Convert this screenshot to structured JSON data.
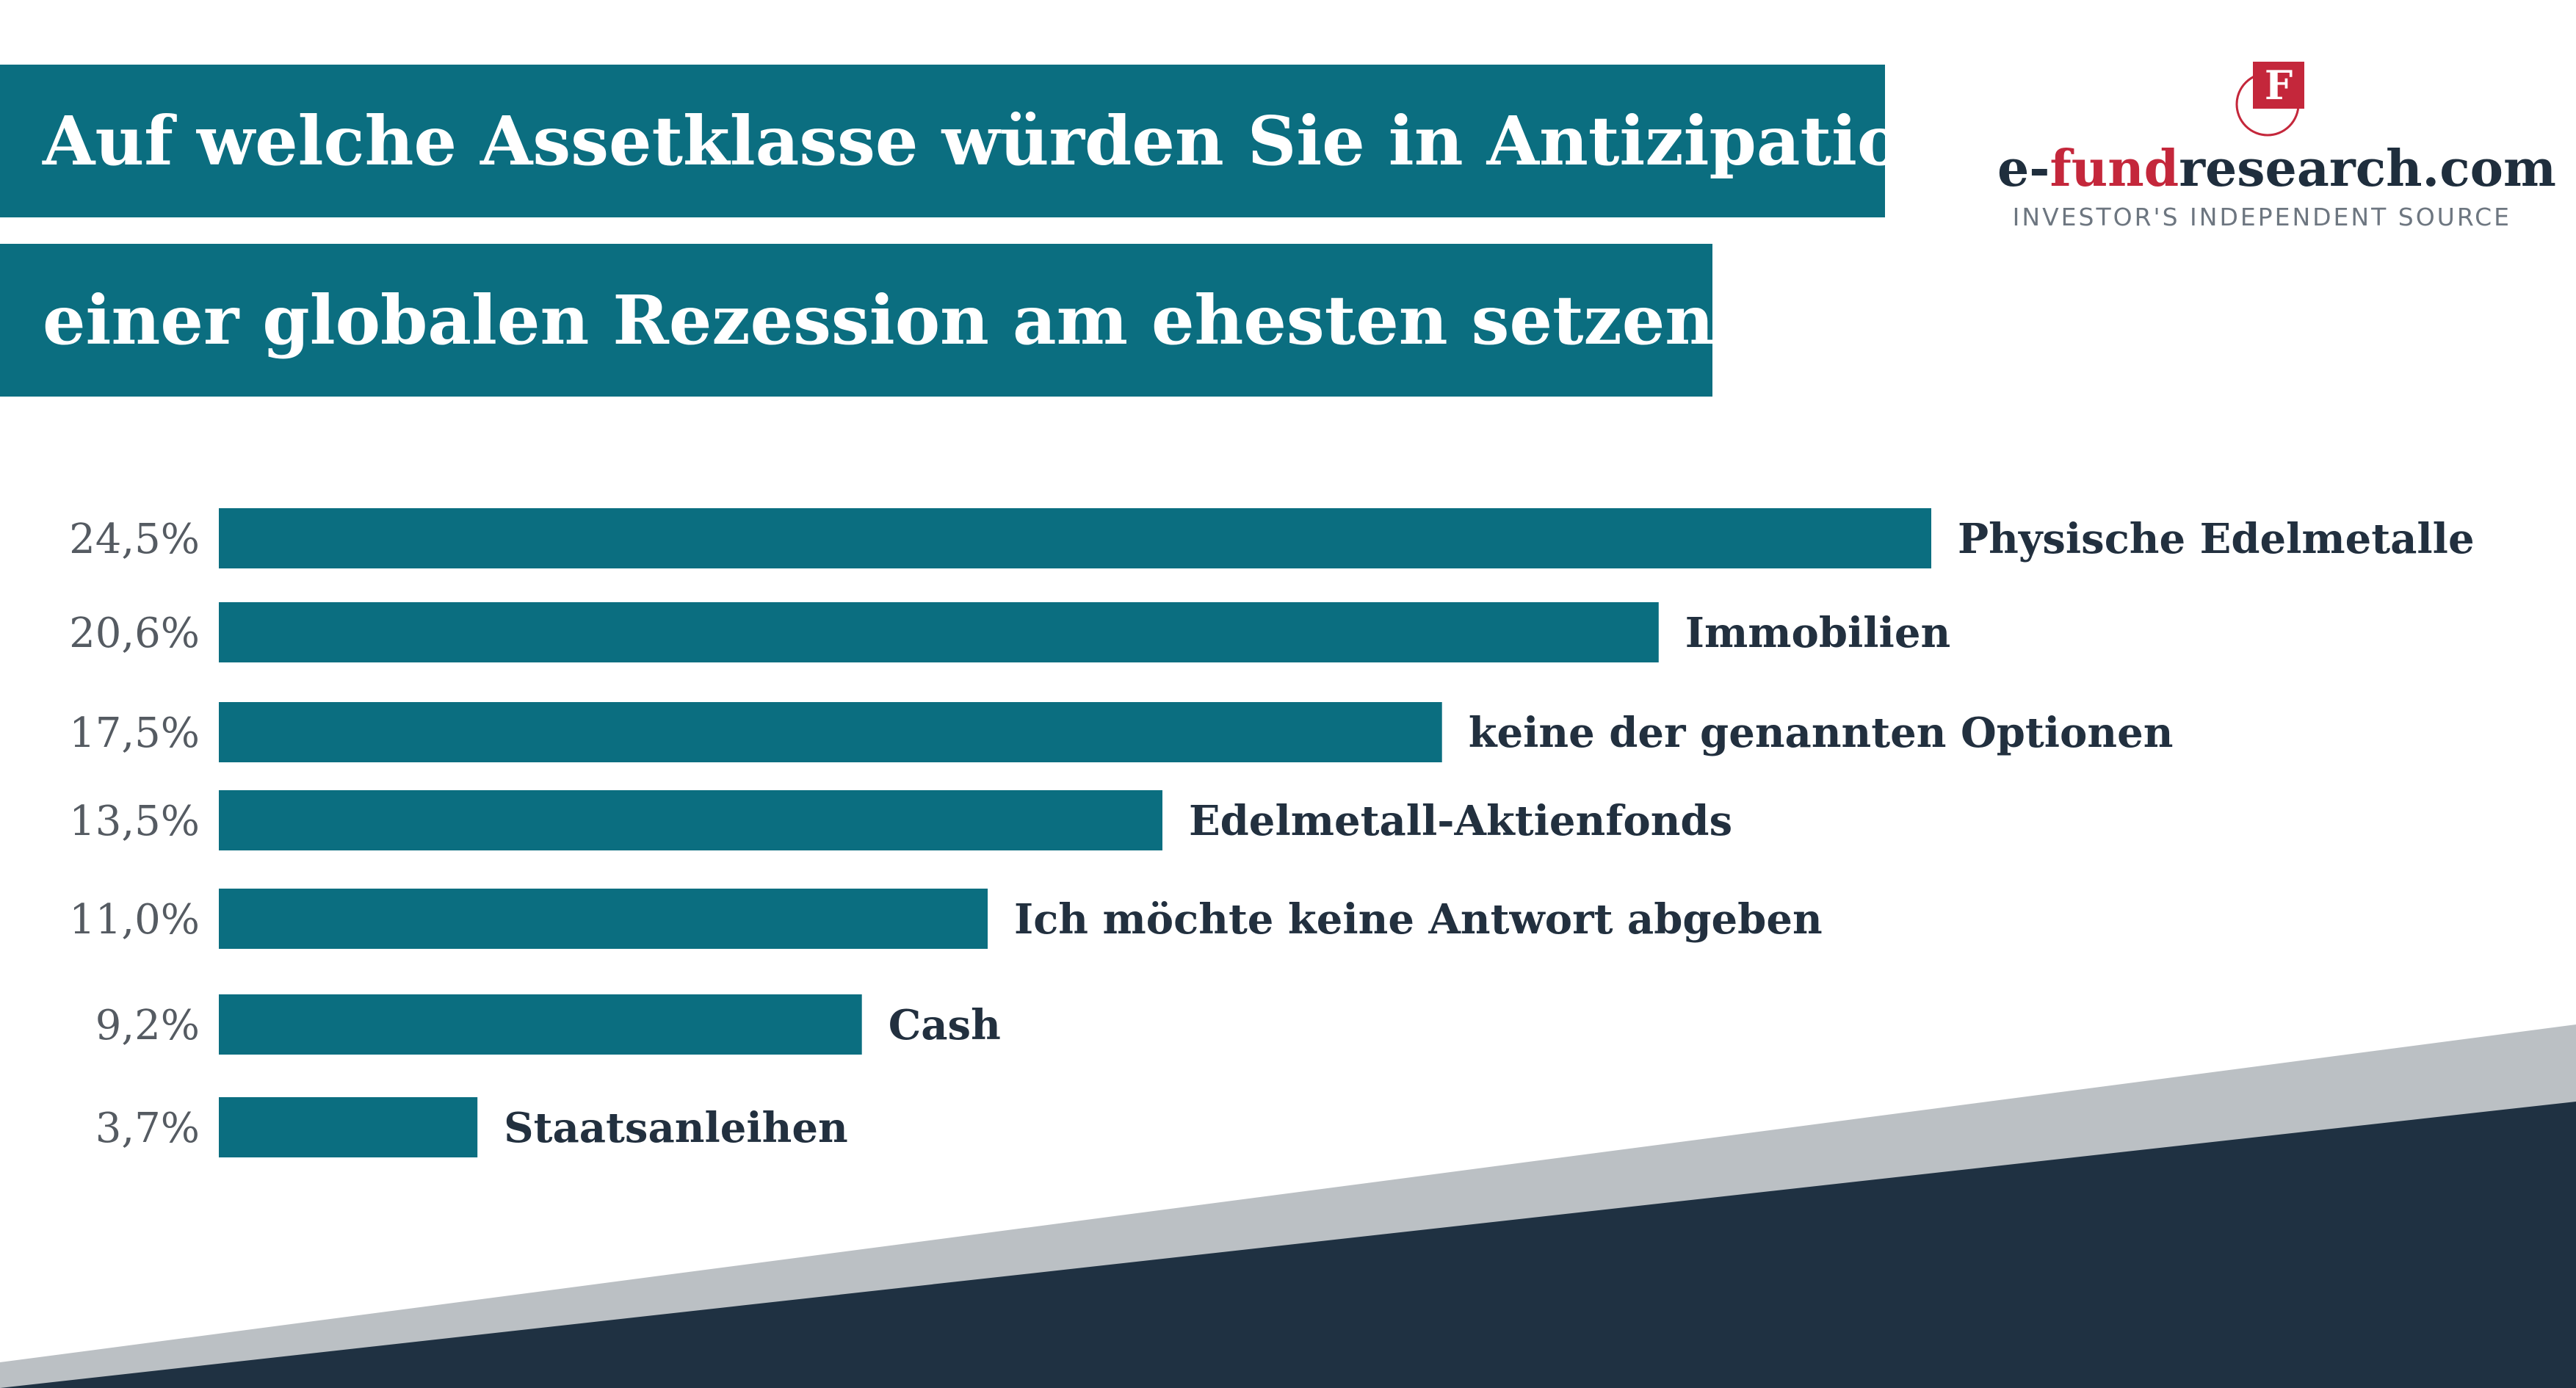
{
  "title": {
    "line1": "Auf welche Assetklasse würden Sie in Antizipation",
    "line2": "einer globalen Rezession am ehesten setzen?"
  },
  "logo": {
    "mark_letter": "F",
    "name_prefix": "e-",
    "name_accent": "fund",
    "name_suffix": "research.com",
    "tagline": "INVESTOR'S INDEPENDENT SOURCE"
  },
  "colors": {
    "bar": "#0b6e80",
    "title_background": "#0b6e80",
    "footer_dark": "#1f3142",
    "footer_light": "#bbc0c4",
    "logo_accent": "#c4273b"
  },
  "chart_data": {
    "type": "bar",
    "orientation": "horizontal",
    "title": "Auf welche Assetklasse würden Sie in Antizipation einer globalen Rezession am ehesten setzen?",
    "categories": [
      "Physische Edelmetalle",
      "Immobilien",
      "keine der genannten Optionen",
      "Edelmetall-Aktienfonds",
      "Ich möchte keine Antwort abgeben",
      "Cash",
      "Staatsanleihen"
    ],
    "values": [
      24.5,
      20.6,
      17.5,
      13.5,
      11.0,
      9.2,
      3.7
    ],
    "value_labels": [
      "24,5%",
      "20,6%",
      "17,5%",
      "13,5%",
      "11,0%",
      "9,2%",
      "3,7%"
    ],
    "unit": "%",
    "xlim": [
      0,
      24.5
    ],
    "grid": false,
    "legend": "none"
  }
}
